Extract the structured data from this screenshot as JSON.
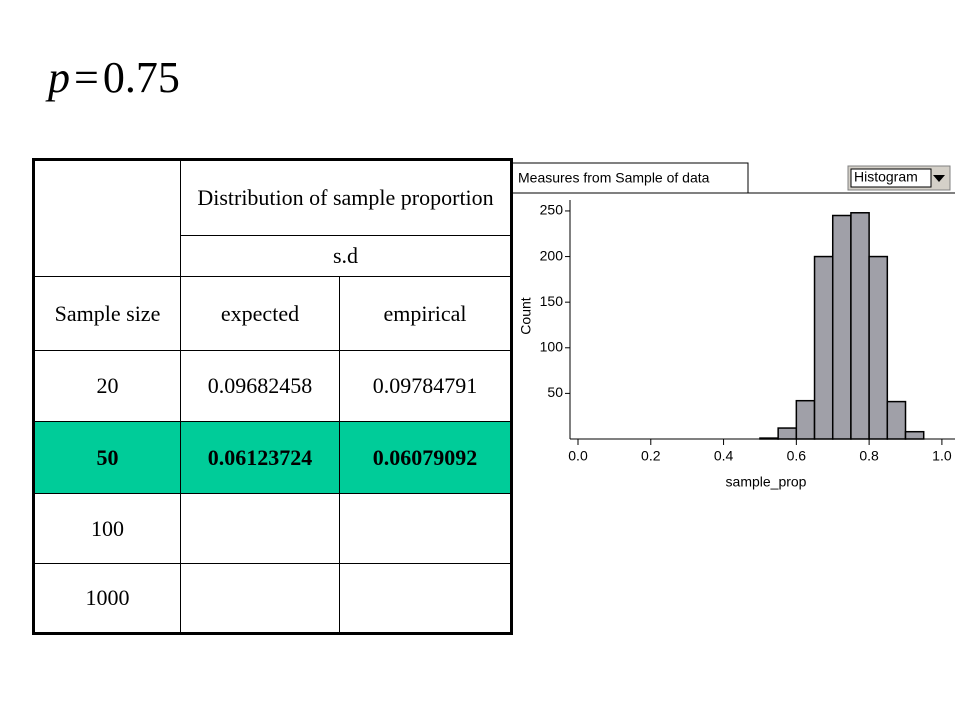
{
  "header": {
    "symbol": "p",
    "relation": "=",
    "value": "0.75"
  },
  "table": {
    "group_header": "Distribution of sample proportion",
    "sub_header": "s.d",
    "columns": [
      "Sample size",
      "expected",
      "empirical"
    ],
    "rows": [
      [
        "20",
        "0.09682458",
        "0.09784791"
      ],
      [
        "50",
        "0.06123724",
        "0.06079092"
      ],
      [
        "100",
        "",
        ""
      ],
      [
        "1000",
        "",
        ""
      ]
    ],
    "highlight_row": 1,
    "highlight_color": "#00cc99"
  },
  "chart_data": {
    "type": "histogram",
    "window_title": "Measures from Sample of data",
    "plot_menu": "Histogram",
    "x_label": "sample_prop",
    "y_label": "Count",
    "bins": [
      0.5,
      0.55,
      0.6,
      0.65,
      0.7,
      0.75,
      0.8,
      0.85,
      0.9,
      0.95
    ],
    "counts": [
      1,
      12,
      42,
      200,
      245,
      248,
      200,
      41,
      8
    ],
    "color": "#a0a0a8",
    "xlim": [
      -0.022,
      1.036
    ],
    "ylim": [
      0,
      262
    ],
    "xticks": [
      {
        "value": 0,
        "label": "0.0"
      },
      0.2,
      0.4,
      0.6,
      0.8,
      {
        "value": 1,
        "label": "1.0"
      }
    ],
    "yticks": [
      50,
      100,
      150,
      200,
      250
    ]
  }
}
